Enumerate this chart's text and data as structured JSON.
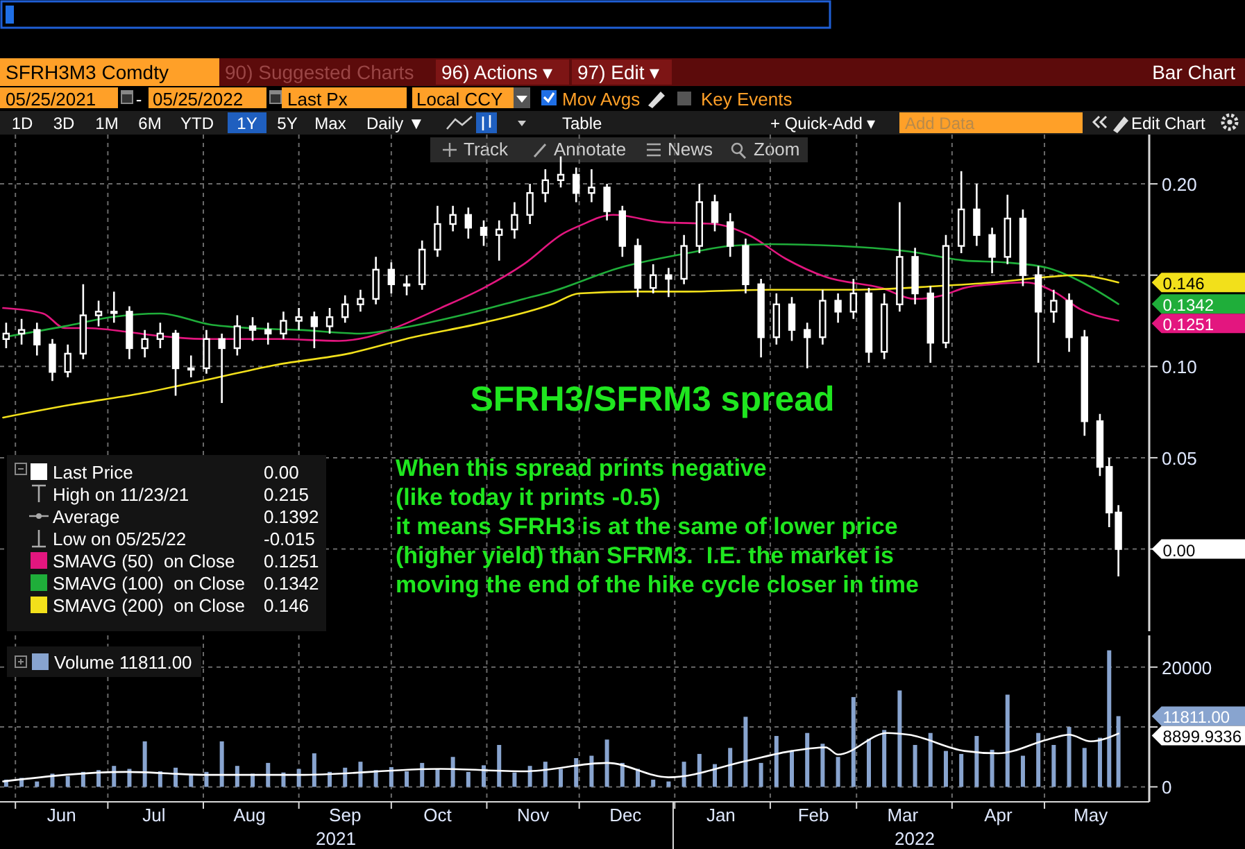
{
  "chart_data": [
    {
      "type": "other",
      "annotations": [
        "SFRH3M3 Comdty",
        "90) Suggested Charts",
        "96) Actions ▾",
        "97) Edit ▾",
        "Bar Chart",
        "05/25/2021",
        "-",
        "05/25/2022",
        "Last Px",
        "Local CCY",
        "Mov Avgs",
        "Key Events",
        "1D",
        "3D",
        "1M",
        "6M",
        "YTD",
        "1Y",
        "5Y",
        "Max",
        "Daily ▼",
        "Table",
        "+ Quick-Add ▾",
        "Add Data",
        "Edit Chart",
        "Track",
        "Annotate",
        "News",
        "Zoom"
      ]
    },
    {
      "type": "candlestick",
      "title": "SFRH3/SFRM3 spread",
      "x": [
        "2021-05-29",
        "2021-06-03",
        "2021-06-08",
        "2021-06-13",
        "2021-06-18",
        "2021-06-23",
        "2021-06-28",
        "2021-07-03",
        "2021-07-08",
        "2021-07-13",
        "2021-07-18",
        "2021-07-23",
        "2021-07-28",
        "2021-08-02",
        "2021-08-07",
        "2021-08-12",
        "2021-08-17",
        "2021-08-22",
        "2021-08-27",
        "2021-09-01",
        "2021-09-06",
        "2021-09-11",
        "2021-09-16",
        "2021-09-21",
        "2021-09-26",
        "2021-10-01",
        "2021-10-06",
        "2021-10-11",
        "2021-10-16",
        "2021-10-21",
        "2021-10-26",
        "2021-10-31",
        "2021-11-05",
        "2021-11-10",
        "2021-11-15",
        "2021-11-20",
        "2021-11-25",
        "2021-11-30",
        "2021-12-05",
        "2021-12-10",
        "2021-12-15",
        "2021-12-20",
        "2021-12-25",
        "2021-12-30",
        "2022-01-04",
        "2022-01-09",
        "2022-01-14",
        "2022-01-19",
        "2022-01-24",
        "2022-01-29",
        "2022-02-03",
        "2022-02-08",
        "2022-02-13",
        "2022-02-18",
        "2022-02-23",
        "2022-02-28",
        "2022-03-05",
        "2022-03-10",
        "2022-03-15",
        "2022-03-20",
        "2022-03-25",
        "2022-03-30",
        "2022-04-04",
        "2022-04-09",
        "2022-04-14",
        "2022-04-19",
        "2022-04-24",
        "2022-04-29",
        "2022-05-04",
        "2022-05-09",
        "2022-05-14",
        "2022-05-19",
        "2022-05-22",
        "2022-05-25"
      ],
      "ohlc": [
        [
          0.115,
          0.124,
          0.11,
          0.118
        ],
        [
          0.118,
          0.126,
          0.112,
          0.12
        ],
        [
          0.12,
          0.124,
          0.106,
          0.112
        ],
        [
          0.112,
          0.115,
          0.092,
          0.097
        ],
        [
          0.097,
          0.112,
          0.094,
          0.107
        ],
        [
          0.107,
          0.145,
          0.104,
          0.128
        ],
        [
          0.128,
          0.136,
          0.122,
          0.13
        ],
        [
          0.13,
          0.141,
          0.124,
          0.13
        ],
        [
          0.13,
          0.133,
          0.104,
          0.11
        ],
        [
          0.11,
          0.12,
          0.105,
          0.115
        ],
        [
          0.115,
          0.124,
          0.11,
          0.118
        ],
        [
          0.118,
          0.12,
          0.084,
          0.099
        ],
        [
          0.099,
          0.106,
          0.094,
          0.099
        ],
        [
          0.099,
          0.12,
          0.096,
          0.115
        ],
        [
          0.115,
          0.118,
          0.08,
          0.11
        ],
        [
          0.11,
          0.128,
          0.106,
          0.122
        ],
        [
          0.122,
          0.127,
          0.114,
          0.12
        ],
        [
          0.12,
          0.124,
          0.112,
          0.118
        ],
        [
          0.118,
          0.13,
          0.115,
          0.125
        ],
        [
          0.125,
          0.132,
          0.12,
          0.127
        ],
        [
          0.127,
          0.13,
          0.11,
          0.122
        ],
        [
          0.122,
          0.132,
          0.118,
          0.127
        ],
        [
          0.127,
          0.139,
          0.124,
          0.134
        ],
        [
          0.134,
          0.142,
          0.13,
          0.137
        ],
        [
          0.137,
          0.16,
          0.134,
          0.153
        ],
        [
          0.153,
          0.157,
          0.14,
          0.145
        ],
        [
          0.145,
          0.15,
          0.139,
          0.145
        ],
        [
          0.145,
          0.169,
          0.142,
          0.164
        ],
        [
          0.164,
          0.188,
          0.16,
          0.178
        ],
        [
          0.178,
          0.188,
          0.174,
          0.183
        ],
        [
          0.183,
          0.187,
          0.17,
          0.176
        ],
        [
          0.176,
          0.18,
          0.166,
          0.172
        ],
        [
          0.172,
          0.18,
          0.158,
          0.175
        ],
        [
          0.175,
          0.19,
          0.17,
          0.183
        ],
        [
          0.183,
          0.2,
          0.178,
          0.195
        ],
        [
          0.195,
          0.208,
          0.19,
          0.202
        ],
        [
          0.202,
          0.215,
          0.198,
          0.205
        ],
        [
          0.205,
          0.209,
          0.19,
          0.195
        ],
        [
          0.195,
          0.208,
          0.19,
          0.198
        ],
        [
          0.198,
          0.2,
          0.18,
          0.185
        ],
        [
          0.185,
          0.188,
          0.16,
          0.166
        ],
        [
          0.166,
          0.17,
          0.138,
          0.143
        ],
        [
          0.143,
          0.156,
          0.14,
          0.15
        ],
        [
          0.15,
          0.154,
          0.138,
          0.148
        ],
        [
          0.148,
          0.172,
          0.145,
          0.166
        ],
        [
          0.166,
          0.2,
          0.162,
          0.19
        ],
        [
          0.19,
          0.194,
          0.174,
          0.179
        ],
        [
          0.179,
          0.184,
          0.16,
          0.166
        ],
        [
          0.166,
          0.17,
          0.14,
          0.145
        ],
        [
          0.145,
          0.148,
          0.105,
          0.116
        ],
        [
          0.116,
          0.14,
          0.112,
          0.134
        ],
        [
          0.134,
          0.138,
          0.114,
          0.12
        ],
        [
          0.12,
          0.124,
          0.099,
          0.116
        ],
        [
          0.116,
          0.142,
          0.112,
          0.136
        ],
        [
          0.136,
          0.14,
          0.124,
          0.13
        ],
        [
          0.13,
          0.148,
          0.126,
          0.14
        ],
        [
          0.14,
          0.143,
          0.102,
          0.108
        ],
        [
          0.108,
          0.14,
          0.104,
          0.134
        ],
        [
          0.134,
          0.19,
          0.13,
          0.16
        ],
        [
          0.16,
          0.165,
          0.134,
          0.14
        ],
        [
          0.14,
          0.144,
          0.102,
          0.113
        ],
        [
          0.113,
          0.172,
          0.11,
          0.166
        ],
        [
          0.166,
          0.207,
          0.162,
          0.186
        ],
        [
          0.186,
          0.2,
          0.166,
          0.172
        ],
        [
          0.172,
          0.176,
          0.151,
          0.16
        ],
        [
          0.16,
          0.194,
          0.156,
          0.181
        ],
        [
          0.181,
          0.186,
          0.144,
          0.15
        ],
        [
          0.15,
          0.155,
          0.102,
          0.13
        ],
        [
          0.13,
          0.142,
          0.124,
          0.136
        ],
        [
          0.136,
          0.14,
          0.108,
          0.116
        ],
        [
          0.116,
          0.12,
          0.062,
          0.07
        ],
        [
          0.07,
          0.074,
          0.04,
          0.045
        ],
        [
          0.045,
          0.05,
          0.012,
          0.02
        ],
        [
          0.02,
          0.024,
          -0.015,
          0.0
        ]
      ],
      "series": [
        {
          "type": "line",
          "name": "SMAVG (50)  on Close",
          "color": "#e3167f",
          "x": [
            "2021-05-28",
            "2021-06-10",
            "2021-06-17",
            "2021-06-24",
            "2021-07-07",
            "2021-07-16",
            "2021-08-03",
            "2021-08-25",
            "2021-09-14",
            "2021-09-23",
            "2021-10-02",
            "2021-10-17",
            "2021-10-31",
            "2021-11-13",
            "2021-11-26",
            "2021-12-01",
            "2021-12-12",
            "2021-12-28",
            "2022-01-14",
            "2022-01-25",
            "2022-02-06",
            "2022-02-19",
            "2022-03-09",
            "2022-03-20",
            "2022-03-29",
            "2022-04-05",
            "2022-04-14",
            "2022-04-25",
            "2022-05-04",
            "2022-05-13",
            "2022-05-25"
          ],
          "values": [
            0.132,
            0.129,
            0.121,
            0.121,
            0.119,
            0.117,
            0.115,
            0.115,
            0.114,
            0.116,
            0.121,
            0.132,
            0.143,
            0.156,
            0.173,
            0.177,
            0.183,
            0.179,
            0.178,
            0.172,
            0.159,
            0.149,
            0.143,
            0.137,
            0.139,
            0.143,
            0.145,
            0.146,
            0.141,
            0.131,
            0.1251
          ]
        },
        {
          "type": "line",
          "name": "SMAVG (100)  on Close",
          "color": "#1fae3a",
          "x": [
            "2021-05-28",
            "2021-06-17",
            "2021-07-02",
            "2021-07-18",
            "2021-08-03",
            "2021-08-16",
            "2021-09-01",
            "2021-09-21",
            "2021-10-04",
            "2021-10-26",
            "2021-11-13",
            "2021-11-22",
            "2021-12-14",
            "2022-01-05",
            "2022-01-19",
            "2022-02-01",
            "2022-02-23",
            "2022-03-18",
            "2022-04-05",
            "2022-04-18",
            "2022-05-02",
            "2022-05-11",
            "2022-05-25"
          ],
          "values": [
            0.116,
            0.122,
            0.127,
            0.129,
            0.123,
            0.121,
            0.12,
            0.118,
            0.121,
            0.129,
            0.137,
            0.141,
            0.154,
            0.162,
            0.166,
            0.167,
            0.166,
            0.163,
            0.158,
            0.157,
            0.154,
            0.148,
            0.1342
          ]
        },
        {
          "type": "line",
          "name": "SMAVG (200)  on Close",
          "color": "#f2e01b",
          "x": [
            "2021-05-28",
            "2021-06-19",
            "2021-07-11",
            "2021-08-03",
            "2021-08-25",
            "2021-09-17",
            "2021-10-08",
            "2021-10-31",
            "2021-11-22",
            "2021-12-01",
            "2021-12-19",
            "2022-01-05",
            "2022-02-01",
            "2022-02-28",
            "2022-03-27",
            "2022-04-14",
            "2022-05-02",
            "2022-05-11",
            "2022-05-25"
          ],
          "values": [
            0.072,
            0.079,
            0.085,
            0.093,
            0.101,
            0.107,
            0.116,
            0.124,
            0.134,
            0.14,
            0.141,
            0.141,
            0.142,
            0.142,
            0.144,
            0.146,
            0.149,
            0.15,
            0.146
          ]
        }
      ],
      "xlim": [
        "2021-05-27",
        "2022-06-04"
      ],
      "xticks": [
        {
          "value": "2021-06-01",
          "label": null
        },
        {
          "value": "2021-07-01",
          "label": null
        },
        {
          "value": "2021-08-01",
          "label": null
        },
        {
          "value": "2021-09-01",
          "label": null
        },
        {
          "value": "2021-10-01",
          "label": null
        },
        {
          "value": "2021-11-01",
          "label": null
        },
        {
          "value": "2021-12-01",
          "label": null
        },
        {
          "value": "2022-01-01",
          "label": null
        },
        {
          "value": "2022-02-01",
          "label": null
        },
        {
          "value": "2022-03-01",
          "label": null
        },
        {
          "value": "2022-04-01",
          "label": null
        },
        {
          "value": "2022-05-01",
          "label": null
        }
      ],
      "ylim": [
        -0.045,
        0.227
      ],
      "yticks": [
        {
          "value": 0,
          "label": "0.00"
        },
        {
          "value": 0.05,
          "label": "0.05"
        },
        {
          "value": 0.1,
          "label": "0.10"
        },
        {
          "value": 0.15,
          "label": null
        },
        {
          "value": 0.2,
          "label": "0.20"
        }
      ],
      "tick_labels": "y",
      "grid": true,
      "legend": "bottom left",
      "annotations": [
        "When this spread prints negative\n(like today it prints -0.5)\nit means SFRH3 is at the same of lower price\n(higher yield) than SFRM3.  I.E. the market is\nmoving the end of the hike cycle closer in time",
        "Last Price",
        "0.00",
        "High on 11/23/21",
        "0.215",
        "Average",
        "0.1392",
        "Low on 05/25/22",
        "-0.015",
        {
          "text": "0.146",
          "x": "2022-05-25",
          "y": 0.146
        },
        {
          "text": "0.1342",
          "x": "2022-05-25",
          "y": 0.1342
        },
        {
          "text": "0.1251",
          "x": "2022-05-25",
          "y": 0.1251
        }
      ]
    },
    {
      "type": "bar",
      "x": [
        "2021-05-29",
        "2021-06-03",
        "2021-06-08",
        "2021-06-13",
        "2021-06-18",
        "2021-06-23",
        "2021-06-28",
        "2021-07-03",
        "2021-07-08",
        "2021-07-13",
        "2021-07-18",
        "2021-07-23",
        "2021-07-28",
        "2021-08-02",
        "2021-08-07",
        "2021-08-12",
        "2021-08-17",
        "2021-08-22",
        "2021-08-27",
        "2021-09-01",
        "2021-09-06",
        "2021-09-11",
        "2021-09-16",
        "2021-09-21",
        "2021-09-26",
        "2021-10-01",
        "2021-10-06",
        "2021-10-11",
        "2021-10-16",
        "2021-10-21",
        "2021-10-26",
        "2021-10-31",
        "2021-11-05",
        "2021-11-10",
        "2021-11-15",
        "2021-11-20",
        "2021-11-25",
        "2021-11-30",
        "2021-12-05",
        "2021-12-10",
        "2021-12-15",
        "2021-12-20",
        "2021-12-25",
        "2021-12-30",
        "2022-01-04",
        "2022-01-09",
        "2022-01-14",
        "2022-01-19",
        "2022-01-24",
        "2022-01-29",
        "2022-02-03",
        "2022-02-08",
        "2022-02-13",
        "2022-02-18",
        "2022-02-23",
        "2022-02-28",
        "2022-03-05",
        "2022-03-10",
        "2022-03-15",
        "2022-03-20",
        "2022-03-25",
        "2022-03-30",
        "2022-04-04",
        "2022-04-09",
        "2022-04-14",
        "2022-04-19",
        "2022-04-24",
        "2022-04-29",
        "2022-05-04",
        "2022-05-09",
        "2022-05-14",
        "2022-05-19",
        "2022-05-22",
        "2022-05-25"
      ],
      "series": [
        {
          "name": "Volume",
          "color": "#88a4cf",
          "values": [
            1200,
            1500,
            900,
            2200,
            1800,
            2500,
            2800,
            3500,
            3000,
            7600,
            2600,
            3200,
            2000,
            2500,
            7600,
            3500,
            2200,
            4000,
            2400,
            3000,
            5600,
            2500,
            3200,
            4200,
            2800,
            3300,
            2600,
            4000,
            3000,
            5000,
            2500,
            3600,
            7000,
            2400,
            3500,
            4200,
            3000,
            4800,
            5200,
            7900,
            4000,
            3000,
            1200,
            900,
            4200,
            5500,
            3800,
            6500,
            11700,
            4000,
            8500,
            6000,
            9000,
            7200,
            5000,
            15000,
            8000,
            9500,
            16100,
            7000,
            9000,
            6000,
            5500,
            8500,
            6200,
            15400,
            5200,
            9000,
            7000,
            10000,
            6500,
            8200,
            22800,
            11811
          ]
        },
        {
          "type": "line",
          "color": "#ffffff",
          "x": [
            "2021-05-28",
            "2021-07-07",
            "2021-08-03",
            "2021-09-01",
            "2021-10-17",
            "2021-11-13",
            "2021-12-10",
            "2021-12-30",
            "2022-01-24",
            "2022-02-08",
            "2022-02-19",
            "2022-02-23",
            "2022-03-11",
            "2022-03-18",
            "2022-04-05",
            "2022-04-16",
            "2022-05-02",
            "2022-05-09",
            "2022-05-16",
            "2022-05-25"
          ],
          "values": [
            900,
            2500,
            2000,
            2000,
            3000,
            2600,
            4000,
            1600,
            4300,
            6000,
            6600,
            5400,
            9000,
            8700,
            6000,
            5600,
            7900,
            8700,
            7600,
            8899.9336
          ]
        }
      ],
      "xlim": [
        "2021-05-27",
        "2022-06-04"
      ],
      "xticks": [
        {
          "value": "2021-06-01",
          "label": null
        },
        {
          "value": "2021-06-16",
          "label": "Jun"
        },
        {
          "value": "2021-07-01",
          "label": null
        },
        {
          "value": "2021-07-16",
          "label": "Jul"
        },
        {
          "value": "2021-08-01",
          "label": null
        },
        {
          "value": "2021-08-16",
          "label": "Aug"
        },
        {
          "value": "2021-09-01",
          "label": null
        },
        {
          "value": "2021-09-16",
          "label": "Sep"
        },
        {
          "value": "2021-10-01",
          "label": null
        },
        {
          "value": "2021-10-16",
          "label": "Oct"
        },
        {
          "value": "2021-11-01",
          "label": null
        },
        {
          "value": "2021-11-16",
          "label": "Nov"
        },
        {
          "value": "2021-12-01",
          "label": null
        },
        {
          "value": "2021-12-16",
          "label": "Dec"
        },
        {
          "value": "2022-01-01",
          "label": null
        },
        {
          "value": "2022-01-16",
          "label": "Jan"
        },
        {
          "value": "2022-02-01",
          "label": null
        },
        {
          "value": "2022-02-15",
          "label": "Feb"
        },
        {
          "value": "2022-03-01",
          "label": null
        },
        {
          "value": "2022-03-16",
          "label": "Mar"
        },
        {
          "value": "2022-04-01",
          "label": null
        },
        {
          "value": "2022-04-16",
          "label": "Apr"
        },
        {
          "value": "2022-05-01",
          "label": null
        },
        {
          "value": "2022-05-16",
          "label": "May"
        }
      ],
      "ylim": [
        -2500,
        25300
      ],
      "yticks": [
        0,
        {
          "value": 10000,
          "label": null
        },
        20000
      ],
      "grid": true,
      "legend": "top left",
      "annotations": [
        {
          "text": "11811.00",
          "x": "2022-05-25",
          "y": 11811
        },
        {
          "text": "8899.9336",
          "x": "2022-05-25",
          "y": 8899.9336
        },
        "2021",
        "2022"
      ]
    }
  ]
}
